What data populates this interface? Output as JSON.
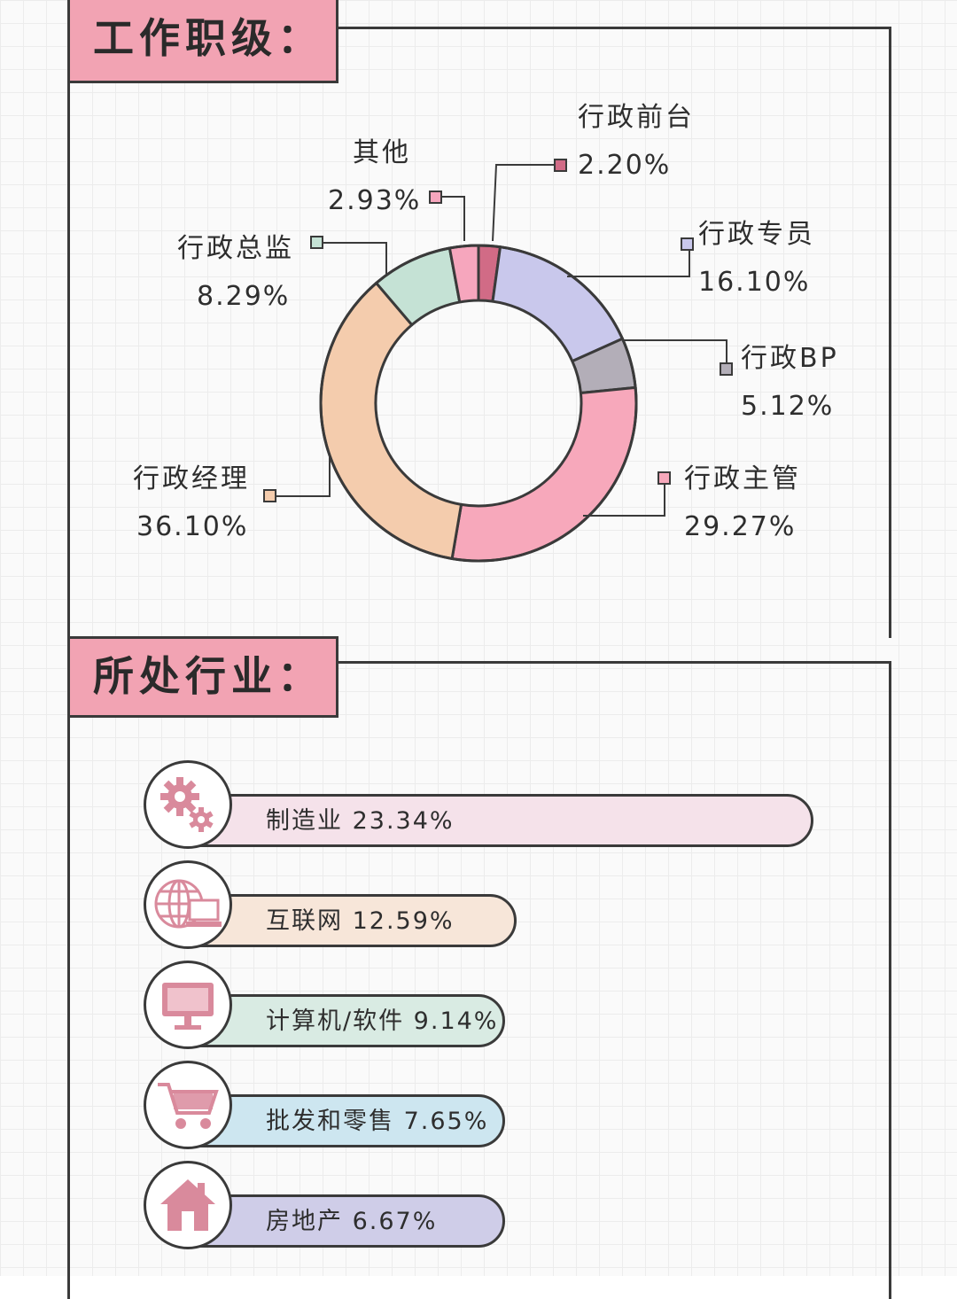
{
  "section1": {
    "title": "工作职级："
  },
  "section2": {
    "title": "所处行业："
  },
  "chart_data": [
    {
      "type": "pie",
      "title": "工作职级：",
      "slices": [
        {
          "label": "行政前台",
          "value": 2.2,
          "text": "2.20%",
          "color": "#d16b86"
        },
        {
          "label": "行政专员",
          "value": 16.1,
          "text": "16.10%",
          "color": "#c9c8ec"
        },
        {
          "label": "行政BP",
          "value": 5.12,
          "text": "5.12%",
          "color": "#b3aeb8"
        },
        {
          "label": "行政主管",
          "value": 29.27,
          "text": "29.27%",
          "color": "#f7a8bb"
        },
        {
          "label": "行政经理",
          "value": 36.1,
          "text": "36.10%",
          "color": "#f4ccad"
        },
        {
          "label": "行政总监",
          "value": 8.29,
          "text": "8.29%",
          "color": "#c5e2d5"
        },
        {
          "label": "其他",
          "value": 2.93,
          "text": "2.93%",
          "color": "#f6a6bd"
        }
      ]
    },
    {
      "type": "bar",
      "title": "所处行业：",
      "bars": [
        {
          "label": "制造业 23.34%",
          "category": "制造业",
          "value": 23.34,
          "color": "#f5e2ea",
          "icon": "gears-icon"
        },
        {
          "label": "互联网 12.59%",
          "category": "互联网",
          "value": 12.59,
          "color": "#f7e6d9",
          "icon": "globe-laptop-icon"
        },
        {
          "label": "计算机/软件 9.14%",
          "category": "计算机/软件",
          "value": 9.14,
          "color": "#d9ebe3",
          "icon": "monitor-icon"
        },
        {
          "label": "批发和零售 7.65%",
          "category": "批发和零售",
          "value": 7.65,
          "color": "#cde6f0",
          "icon": "cart-icon"
        },
        {
          "label": "房地产 6.67%",
          "category": "房地产",
          "value": 6.67,
          "color": "#cfcde8",
          "icon": "house-icon"
        }
      ]
    }
  ],
  "colors": {
    "accent": "#f2a3b3",
    "icon": "#d98a9c",
    "stroke": "#3a3a3a"
  }
}
